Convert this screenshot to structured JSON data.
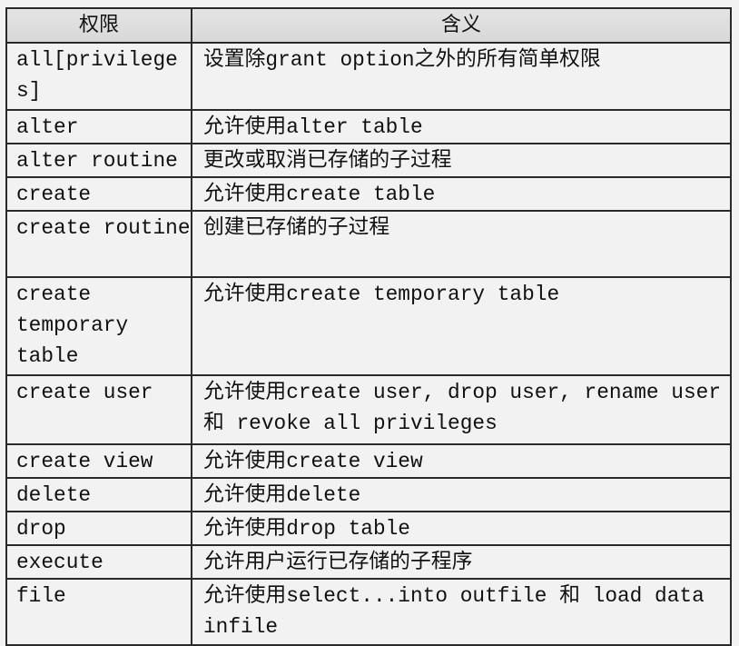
{
  "table": {
    "headers": [
      "权限",
      "含义"
    ],
    "rows": [
      {
        "privilege": "all[privileges]",
        "meaning": "设置除grant option之外的所有简单权限"
      },
      {
        "privilege": "alter",
        "meaning": "允许使用alter table"
      },
      {
        "privilege": "alter routine",
        "meaning": "更改或取消已存储的子过程"
      },
      {
        "privilege": "create",
        "meaning": "允许使用create table"
      },
      {
        "privilege": "create routine",
        "meaning": "创建已存储的子过程"
      },
      {
        "privilege": "create temporary table",
        "meaning": "允许使用create temporary table"
      },
      {
        "privilege": "create user",
        "meaning": "允许使用create user, drop user, rename user 和 revoke all privileges"
      },
      {
        "privilege": "create view",
        "meaning": "允许使用create view"
      },
      {
        "privilege": "delete",
        "meaning": "允许使用delete"
      },
      {
        "privilege": "drop",
        "meaning": "允许使用drop table"
      },
      {
        "privilege": "execute",
        "meaning": "允许用户运行已存储的子程序"
      },
      {
        "privilege": "file",
        "meaning": "允许使用select...into outfile 和 load data infile"
      }
    ]
  }
}
